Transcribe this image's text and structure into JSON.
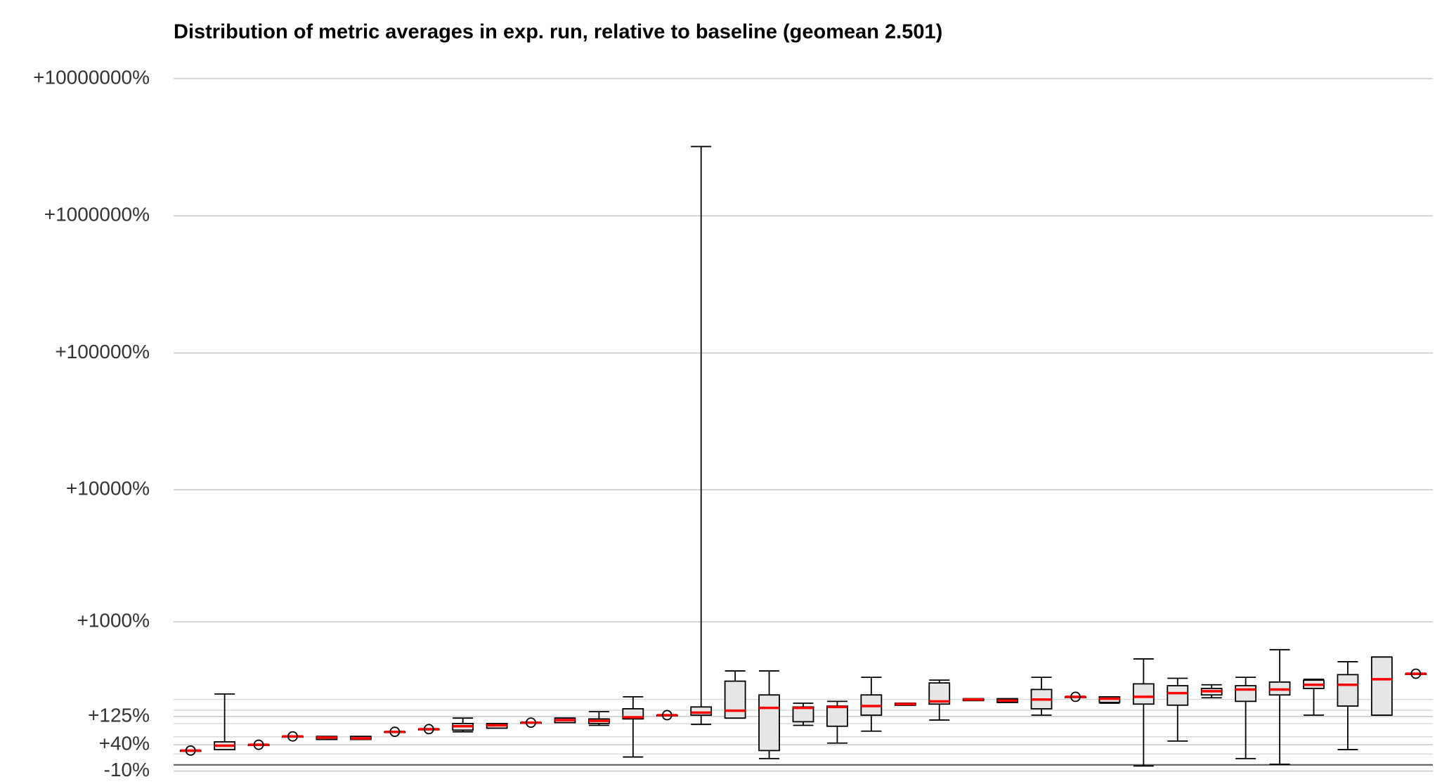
{
  "chart_data": {
    "type": "box",
    "title": "Distribution of metric averages in exp. run, relative to baseline (geomean 2.501)",
    "yscale": "log",
    "ylim": [
      0.83,
      150000
    ],
    "yticks": [
      {
        "value": 100001,
        "label": "+10000000%"
      },
      {
        "value": 10001,
        "label": "+1000000%"
      },
      {
        "value": 1001,
        "label": "+100000%"
      },
      {
        "value": 101,
        "label": "+10000%"
      },
      {
        "value": 11,
        "label": "+1000%"
      },
      {
        "value": 2.25,
        "label": "+125%"
      },
      {
        "value": 1.4,
        "label": "+40%"
      },
      {
        "value": 0.9,
        "label": "-10%"
      }
    ],
    "yminorticks": [
      1,
      1.2,
      1.6,
      2,
      2.5,
      3
    ],
    "hline": 1,
    "grid": true,
    "box_color": "#e6e6e6",
    "median_color": "#ff0000",
    "boxes": [
      {
        "whislo": 1.27,
        "q1": 1.27,
        "med": 1.27,
        "q3": 1.27,
        "whishi": 1.27
      },
      {
        "whislo": 1.29,
        "q1": 1.29,
        "med": 1.38,
        "q3": 1.47,
        "whishi": 3.28
      },
      {
        "whislo": 1.4,
        "q1": 1.4,
        "med": 1.4,
        "q3": 1.4,
        "whishi": 1.4
      },
      {
        "whislo": 1.61,
        "q1": 1.61,
        "med": 1.61,
        "q3": 1.61,
        "whishi": 1.61
      },
      {
        "whislo": 1.53,
        "q1": 1.53,
        "med": 1.58,
        "q3": 1.61,
        "whishi": 1.61
      },
      {
        "whislo": 1.53,
        "q1": 1.53,
        "med": 1.56,
        "q3": 1.61,
        "whishi": 1.61
      },
      {
        "whislo": 1.74,
        "q1": 1.74,
        "med": 1.74,
        "q3": 1.74,
        "whishi": 1.74
      },
      {
        "whislo": 1.82,
        "q1": 1.82,
        "med": 1.82,
        "q3": 1.82,
        "whishi": 1.82
      },
      {
        "whislo": 1.74,
        "q1": 1.79,
        "med": 1.91,
        "q3": 2.0,
        "whishi": 2.19
      },
      {
        "whislo": 1.85,
        "q1": 1.85,
        "med": 1.94,
        "q3": 2.0,
        "whishi": 2.0
      },
      {
        "whislo": 2.03,
        "q1": 2.03,
        "med": 2.03,
        "q3": 2.03,
        "whishi": 2.03
      },
      {
        "whislo": 2.03,
        "q1": 2.03,
        "med": 2.12,
        "q3": 2.19,
        "whishi": 2.19
      },
      {
        "whislo": 1.94,
        "q1": 2.0,
        "med": 2.09,
        "q3": 2.16,
        "whishi": 2.44
      },
      {
        "whislo": 1.14,
        "q1": 2.16,
        "med": 2.22,
        "q3": 2.56,
        "whishi": 3.13
      },
      {
        "whislo": 2.3,
        "q1": 2.3,
        "med": 2.3,
        "q3": 2.3,
        "whishi": 2.3
      },
      {
        "whislo": 1.97,
        "q1": 2.3,
        "med": 2.4,
        "q3": 2.64,
        "whishi": 32000
      },
      {
        "whislo": 2.19,
        "q1": 2.19,
        "med": 2.48,
        "q3": 4.07,
        "whishi": 4.83
      },
      {
        "whislo": 1.11,
        "q1": 1.27,
        "med": 2.6,
        "q3": 3.23,
        "whishi": 4.83
      },
      {
        "whislo": 1.94,
        "q1": 2.06,
        "med": 2.6,
        "q3": 2.64,
        "whishi": 2.81
      },
      {
        "whislo": 1.44,
        "q1": 1.91,
        "med": 2.64,
        "q3": 2.68,
        "whishi": 2.9
      },
      {
        "whislo": 1.76,
        "q1": 2.3,
        "med": 2.68,
        "q3": 3.23,
        "whishi": 4.34
      },
      {
        "whislo": 2.72,
        "q1": 2.72,
        "med": 2.77,
        "q3": 2.81,
        "whishi": 2.81
      },
      {
        "whislo": 2.12,
        "q1": 2.77,
        "med": 2.9,
        "q3": 3.95,
        "whishi": 4.14
      },
      {
        "whislo": 2.94,
        "q1": 2.94,
        "med": 2.99,
        "q3": 3.03,
        "whishi": 3.03
      },
      {
        "whislo": 2.85,
        "q1": 2.85,
        "med": 2.94,
        "q3": 3.03,
        "whishi": 3.03
      },
      {
        "whislo": 2.3,
        "q1": 2.56,
        "med": 2.99,
        "q3": 3.54,
        "whishi": 4.34
      },
      {
        "whislo": 3.13,
        "q1": 3.13,
        "med": 3.13,
        "q3": 3.13,
        "whishi": 3.13
      },
      {
        "whislo": 2.81,
        "q1": 2.85,
        "med": 3.03,
        "q3": 3.13,
        "whishi": 3.13
      },
      {
        "whislo": 0.98,
        "q1": 2.77,
        "med": 3.13,
        "q3": 3.89,
        "whishi": 5.91
      },
      {
        "whislo": 1.49,
        "q1": 2.72,
        "med": 3.33,
        "q3": 3.77,
        "whishi": 4.27
      },
      {
        "whislo": 3.08,
        "q1": 3.23,
        "med": 3.44,
        "q3": 3.6,
        "whishi": 3.83
      },
      {
        "whislo": 1.11,
        "q1": 2.9,
        "med": 3.54,
        "q3": 3.77,
        "whishi": 4.34
      },
      {
        "whislo": 1.01,
        "q1": 3.23,
        "med": 3.54,
        "q3": 4.01,
        "whishi": 6.9
      },
      {
        "whislo": 2.3,
        "q1": 3.6,
        "med": 3.83,
        "q3": 4.14,
        "whishi": 4.2
      },
      {
        "whislo": 1.29,
        "q1": 2.68,
        "med": 3.83,
        "q3": 4.54,
        "whishi": 5.64
      },
      {
        "whislo": 2.3,
        "q1": 2.3,
        "med": 4.2,
        "q3": 6.1,
        "whishi": 6.1
      },
      {
        "whislo": 4.61,
        "q1": 4.61,
        "med": 4.61,
        "q3": 4.61,
        "whishi": 4.61
      }
    ]
  }
}
